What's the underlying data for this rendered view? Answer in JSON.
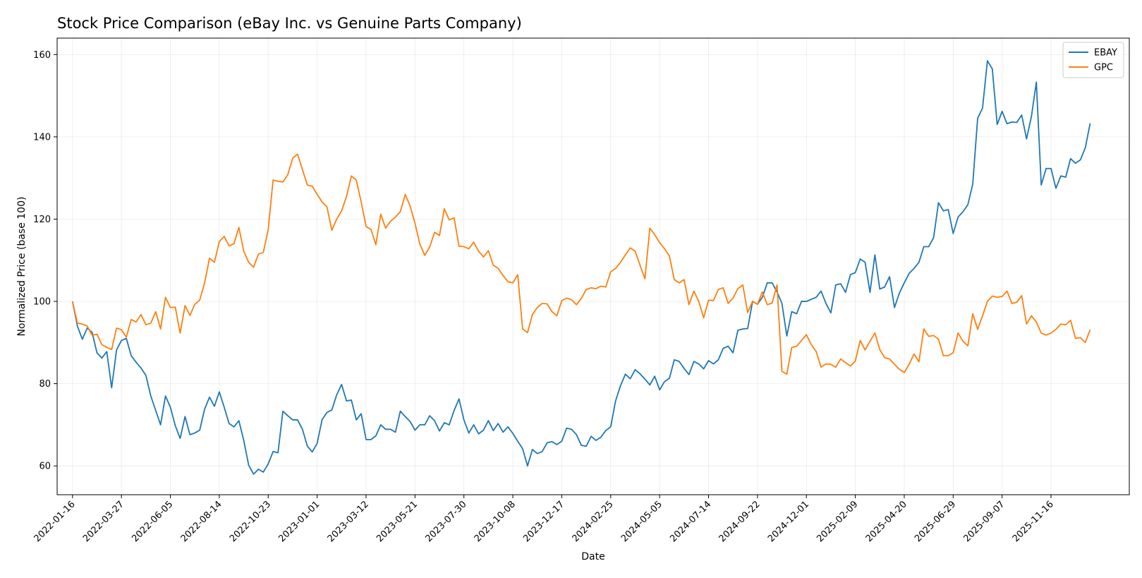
{
  "chart_data": {
    "type": "line",
    "title": "Stock Price Comparison (eBay Inc. vs Genuine Parts Company)",
    "xlabel": "Date",
    "ylabel": "Normalized Price (base 100)",
    "grid": true,
    "legend": "top-right",
    "x_start": "2022-01-16",
    "x_step_days": 7,
    "xlim": [
      "2021-12-25",
      "2026-03-08"
    ],
    "ylim": [
      53,
      164
    ],
    "yticks": [
      60,
      80,
      100,
      120,
      140,
      160
    ],
    "xticks": [
      "2022-01-16",
      "2022-03-27",
      "2022-06-05",
      "2022-08-14",
      "2022-10-23",
      "2023-01-01",
      "2023-03-12",
      "2023-05-21",
      "2023-07-30",
      "2023-10-08",
      "2023-12-17",
      "2024-02-25",
      "2024-05-05",
      "2024-07-14",
      "2024-09-22",
      "2024-12-01",
      "2025-02-09",
      "2025-04-20",
      "2025-06-29",
      "2025-09-07",
      "2025-11-16"
    ],
    "series": [
      {
        "name": "EBAY",
        "color": "#1f77b4",
        "values": [
          100,
          94,
          90.8,
          93.5,
          92.5,
          87.5,
          86.2,
          87.8,
          79,
          88.2,
          90.5,
          91,
          86.8,
          85.2,
          83.8,
          82,
          77,
          73.5,
          70,
          77,
          74.3,
          69.8,
          66.7,
          72,
          67.6,
          68,
          68.7,
          73.8,
          76.7,
          74.5,
          78,
          74.3,
          70.3,
          69.5,
          71,
          66.2,
          60.2,
          58,
          59.2,
          58.5,
          60.5,
          63.5,
          63.2,
          73.3,
          72.2,
          71.2,
          71.2,
          68.9,
          64.8,
          63.4,
          65.5,
          71.2,
          73,
          73.6,
          77.3,
          79.8,
          75.8,
          76,
          71.2,
          72.7,
          66.4,
          66.4,
          67.3,
          70,
          68.9,
          68.9,
          68.2,
          73.3,
          72,
          70.8,
          68.7,
          70,
          70,
          72.2,
          71,
          68.5,
          70.5,
          70,
          73.5,
          76.3,
          71.2,
          68,
          70,
          67.8,
          68.7,
          71,
          68.6,
          70.3,
          68.2,
          69.5,
          67.9,
          66,
          64.2,
          60,
          64,
          63,
          63.5,
          65.6,
          65.9,
          65.2,
          66,
          69.2,
          68.9,
          67.6,
          65,
          64.8,
          67.2,
          66.2,
          67,
          68.6,
          69.5,
          75.8,
          79.5,
          82.3,
          81.2,
          83.4,
          82.4,
          81.1,
          79.7,
          81.8,
          78.5,
          80.5,
          81.3,
          85.8,
          85.4,
          83.7,
          82.2,
          85.4,
          84.8,
          83.6,
          85.6,
          84.8,
          85.8,
          88.6,
          89.1,
          87.5,
          93,
          93.3,
          93.4,
          100,
          99.3,
          101,
          104.5,
          104.5,
          102.3,
          99.5,
          91.6,
          97.5,
          97,
          100,
          100,
          100.5,
          101,
          102.5,
          99.5,
          97.2,
          104,
          104.3,
          102.2,
          106.5,
          107,
          110.3,
          109.5,
          102.2,
          111.3,
          103,
          103.5,
          106,
          98.5,
          102,
          104.5,
          106.8,
          108,
          109.5,
          113.3,
          113.3,
          115.5,
          124,
          122,
          122.3,
          116.5,
          120.5,
          121.8,
          123.5,
          128.5,
          144.5,
          147,
          158.5,
          156.5,
          143,
          146.2,
          143.2,
          143.6,
          143.5,
          145.3,
          139.5,
          145,
          153.3,
          128.3,
          132.3,
          132.3,
          127.5,
          130.5,
          130.2,
          134.7,
          133.6,
          134.4,
          137.3,
          143.3
        ]
      },
      {
        "name": "GPC",
        "color": "#ff7f0e",
        "values": [
          100,
          94.7,
          94.5,
          94,
          91.8,
          92,
          89.5,
          88.8,
          88.3,
          93.5,
          93.1,
          91.3,
          95.6,
          95,
          96.8,
          94.3,
          94.7,
          97.5,
          93.3,
          101,
          98.5,
          98.6,
          92.3,
          99,
          96.6,
          99.3,
          100.3,
          104.5,
          110.5,
          109.5,
          114.5,
          115.8,
          113.5,
          114,
          118,
          112.2,
          109.5,
          108.3,
          111.5,
          111.9,
          117.5,
          129.5,
          129.2,
          129,
          130.8,
          134.8,
          135.8,
          132,
          128.3,
          128,
          126,
          124.2,
          123,
          117.3,
          120,
          122,
          125.5,
          130.5,
          129.5,
          124.2,
          118.2,
          117.5,
          113.8,
          121.2,
          117.8,
          119.5,
          120.5,
          121.8,
          126,
          123.2,
          119,
          113.9,
          111.2,
          113.2,
          116.8,
          116,
          122.5,
          119.8,
          120.3,
          113.4,
          113.3,
          112.8,
          114.4,
          112.2,
          110.8,
          112.3,
          108.8,
          108,
          106.3,
          104.8,
          104.5,
          106.5,
          93.3,
          92.4,
          96.8,
          98.5,
          99.5,
          99.4,
          97.5,
          96.5,
          100.2,
          100.8,
          100.4,
          99.2,
          100.7,
          102.9,
          103.3,
          103.1,
          103.7,
          103.5,
          107.2,
          108,
          109.5,
          111.3,
          113,
          112.2,
          108.8,
          105.5,
          117.8,
          116.2,
          114.3,
          112.8,
          111,
          105.3,
          104.5,
          105.3,
          99.2,
          102.5,
          100,
          96,
          100.3,
          100.2,
          102.9,
          103.3,
          99.5,
          100.8,
          103.1,
          104,
          97.3,
          100,
          99.3,
          102.3,
          99.2,
          99.6,
          104,
          83,
          82.3,
          88.8,
          89.1,
          90.5,
          91.9,
          89.5,
          87.8,
          84,
          84.8,
          84.7,
          84,
          86,
          85.1,
          84.3,
          85.5,
          90.5,
          88.2,
          90.3,
          92.3,
          88.3,
          86.3,
          86,
          84.7,
          83.5,
          82.7,
          84.7,
          87.2,
          85.3,
          93.3,
          91.5,
          91.7,
          90.8,
          86.8,
          86.8,
          87.5,
          92.3,
          90.3,
          89.2,
          97,
          93.2,
          96.5,
          100,
          101.3,
          101,
          101.2,
          102.5,
          99.5,
          99.8,
          101.4,
          94.5,
          96.5,
          95,
          92.3,
          91.8,
          92.3,
          93.2,
          94.5,
          94.3,
          95.4,
          91,
          91.2,
          90,
          93.1
        ]
      }
    ]
  }
}
